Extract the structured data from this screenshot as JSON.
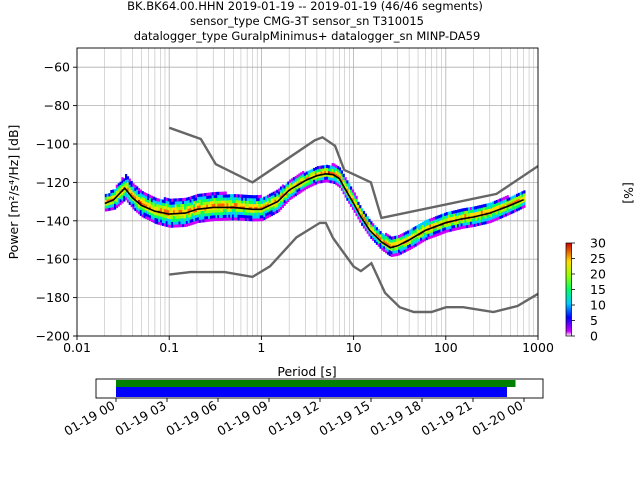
{
  "figure": {
    "title_lines": [
      "BK.BK64.00.HHN   2019-01-19 -- 2019-01-19  (46/46 segments)",
      "sensor_type CMG-3T sensor_sn T310015",
      "datalogger_type GuralpMinimus+ datalogger_sn MINP-DA59"
    ]
  },
  "colorbar": {
    "label": "[%]",
    "ticks": [
      "0",
      "5",
      "10",
      "15",
      "20",
      "25",
      "30"
    ],
    "range": [
      0,
      30
    ],
    "colormap": "pqlx"
  },
  "timeline": {
    "tick_labels": [
      "01-19 00",
      "01-19 03",
      "01-19 06",
      "01-19 09",
      "01-19 12",
      "01-19 15",
      "01-19 18",
      "01-19 21",
      "01-20 00"
    ],
    "bar1_color": "#008000",
    "bar2_color": "#0000ff",
    "bar1_span_hours": [
      0,
      23.5
    ],
    "bar2_span_hours": [
      0,
      23.0
    ]
  },
  "chart_data": {
    "type": "heatmap",
    "title": "BK.BK64.00.HHN   2019-01-19 -- 2019-01-19  (46/46 segments)",
    "xlabel": "Period [s]",
    "ylabel_text": "Power [m²/s⁴/Hz] [dB]",
    "xscale": "log",
    "xlim": [
      0.01,
      1000
    ],
    "ylim": [
      -200,
      -50
    ],
    "grid": true,
    "x_tick_labels": [
      "0.01",
      "0.1",
      "1",
      "10",
      "100",
      "1000"
    ],
    "y_ticks": [
      -60,
      -80,
      -100,
      -120,
      -140,
      -160,
      -180,
      -200
    ],
    "y_tick_labels": [
      "−60",
      "−80",
      "−100",
      "−120",
      "−140",
      "−160",
      "−180",
      "−200"
    ],
    "nhnm": {
      "periods": [
        0.1,
        0.22,
        0.32,
        0.8,
        3.8,
        4.6,
        6.3,
        7.9,
        15.4,
        20,
        354.8,
        1000
      ],
      "db": [
        -91.5,
        -97.4,
        -110.5,
        -120,
        -98,
        -96.5,
        -101,
        -113.5,
        -120,
        -138.5,
        -126,
        -111.5
      ]
    },
    "nlnm": {
      "periods": [
        0.1,
        0.17,
        0.4,
        0.8,
        1.24,
        2.4,
        4.3,
        5,
        6,
        10,
        12,
        15.6,
        21.9,
        31.6,
        45,
        70,
        101,
        154,
        328,
        600,
        1000
      ],
      "db": [
        -168,
        -166.7,
        -166.7,
        -169.2,
        -163.7,
        -148.6,
        -141.1,
        -141.1,
        -149,
        -163.8,
        -166.2,
        -162.1,
        -177.5,
        -185,
        -187.5,
        -187.5,
        -185,
        -185,
        -187.5,
        -184.4,
        -178
      ]
    },
    "mean_psd": {
      "periods": [
        0.02,
        0.025,
        0.03,
        0.033,
        0.04,
        0.05,
        0.07,
        0.1,
        0.15,
        0.2,
        0.3,
        0.5,
        0.8,
        1.0,
        1.5,
        2.0,
        3.0,
        4.0,
        5.0,
        6.0,
        7.0,
        8.0,
        10,
        12,
        15,
        20,
        25,
        30,
        40,
        60,
        100,
        150,
        200,
        300,
        500,
        700
      ],
      "db": [
        -131,
        -129,
        -125,
        -123,
        -128,
        -132,
        -135,
        -136.5,
        -136,
        -134,
        -133,
        -133,
        -134,
        -134,
        -130,
        -124,
        -119,
        -116.5,
        -115.5,
        -116,
        -118,
        -123,
        -131,
        -138,
        -145,
        -151,
        -154,
        -153,
        -150,
        -145,
        -141,
        -139,
        -138,
        -136,
        -132,
        -129
      ]
    },
    "histogram_spread": {
      "periods": [
        0.02,
        0.03,
        0.05,
        0.1,
        0.3,
        1,
        2,
        4,
        8,
        15,
        30,
        100,
        300,
        700
      ],
      "spread_db": [
        4,
        6,
        6,
        7,
        7,
        6,
        5,
        4,
        5,
        4,
        5,
        5,
        5,
        4
      ]
    }
  }
}
